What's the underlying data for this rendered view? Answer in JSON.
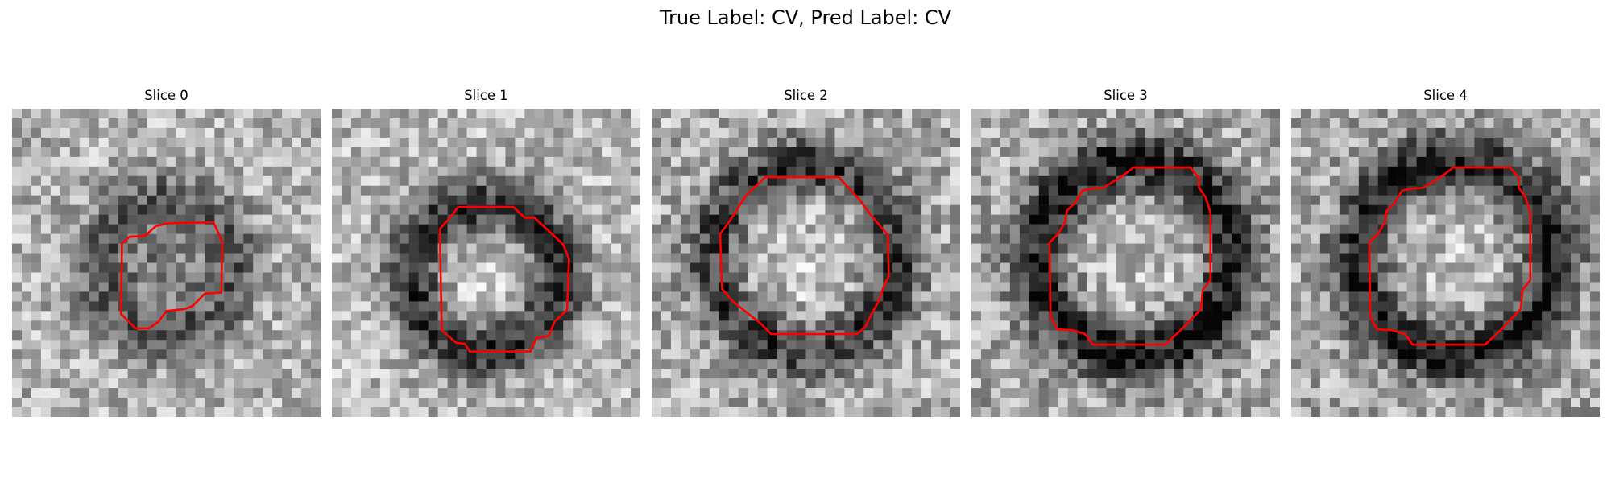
{
  "figure": {
    "title": "True Label: CV, Pred Label: CV"
  },
  "panels": [
    {
      "title": "Slice 0"
    },
    {
      "title": "Slice 1"
    },
    {
      "title": "Slice 2"
    },
    {
      "title": "Slice 3"
    },
    {
      "title": "Slice 4"
    }
  ],
  "colors": {
    "contour": "#ff0000"
  }
}
